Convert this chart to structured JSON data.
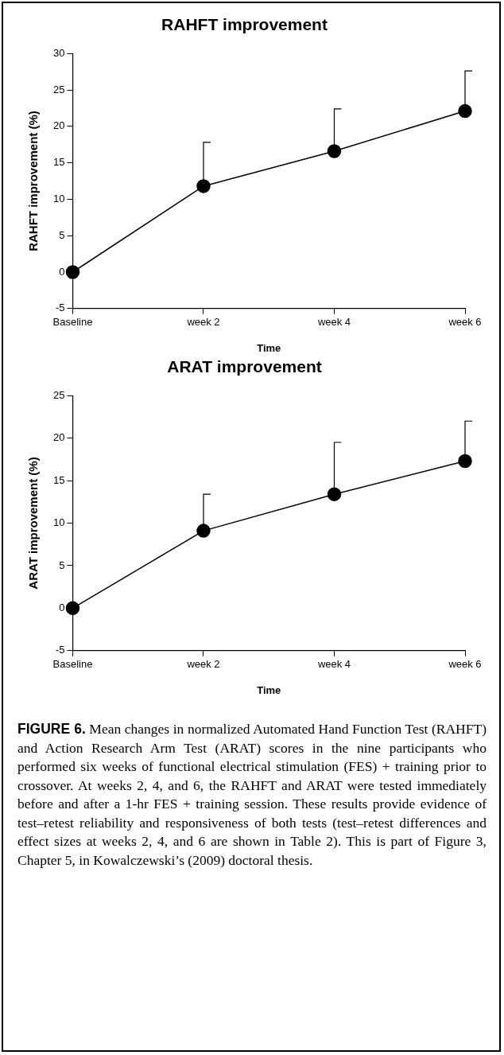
{
  "chart_data": [
    {
      "type": "line",
      "title": "RAHFT improvement",
      "xlabel": "Time",
      "ylabel": "RAHFT improvement (%)",
      "categories": [
        "Baseline",
        "week 2",
        "week 4",
        "week 6"
      ],
      "series": [
        {
          "color": "#000000",
          "values": [
            0,
            11.8,
            16.6,
            22.1
          ],
          "errors": [
            null,
            [
              11.8,
              17.8
            ],
            [
              16.6,
              22.4
            ],
            [
              22.1,
              27.6
            ]
          ]
        }
      ],
      "ylim": [
        -5,
        30
      ],
      "yticks": [
        -5,
        0,
        5,
        10,
        15,
        20,
        25,
        30
      ],
      "marker": "circle",
      "grid": false,
      "legend": false
    },
    {
      "type": "line",
      "title": "ARAT improvement",
      "xlabel": "Time",
      "ylabel": "ARAT improvement (%)",
      "categories": [
        "Baseline",
        "week 2",
        "week 4",
        "week 6"
      ],
      "series": [
        {
          "color": "#000000",
          "values": [
            0,
            9.1,
            13.4,
            17.3
          ],
          "errors": [
            null,
            [
              9.1,
              13.4
            ],
            [
              13.4,
              19.5
            ],
            [
              17.3,
              22.0
            ]
          ]
        }
      ],
      "ylim": [
        -5,
        25
      ],
      "yticks": [
        -5,
        0,
        5,
        10,
        15,
        20,
        25
      ],
      "marker": "circle",
      "grid": false,
      "legend": false,
      "annotations": [
        "FIGURE 6. Mean changes in normalized Automated Hand Function Test (RAHFT) and Action Research Arm Test (ARAT) scores in the nine participants who performed six weeks of functional electrical stimulation (FES) + training prior to crossover. At weeks 2, 4, and 6, the RAHFT and ARAT were tested immediately before and after a 1-hr FES + training session. These results provide evidence of test–retest reliability and responsiveness of both tests (test–retest differences and effect sizes at weeks 2, 4, and 6 are shown in Table 2). This is part of Figure 3, Chapter 5, in Kowalczewski’s (2009) doctoral thesis."
      ]
    }
  ]
}
